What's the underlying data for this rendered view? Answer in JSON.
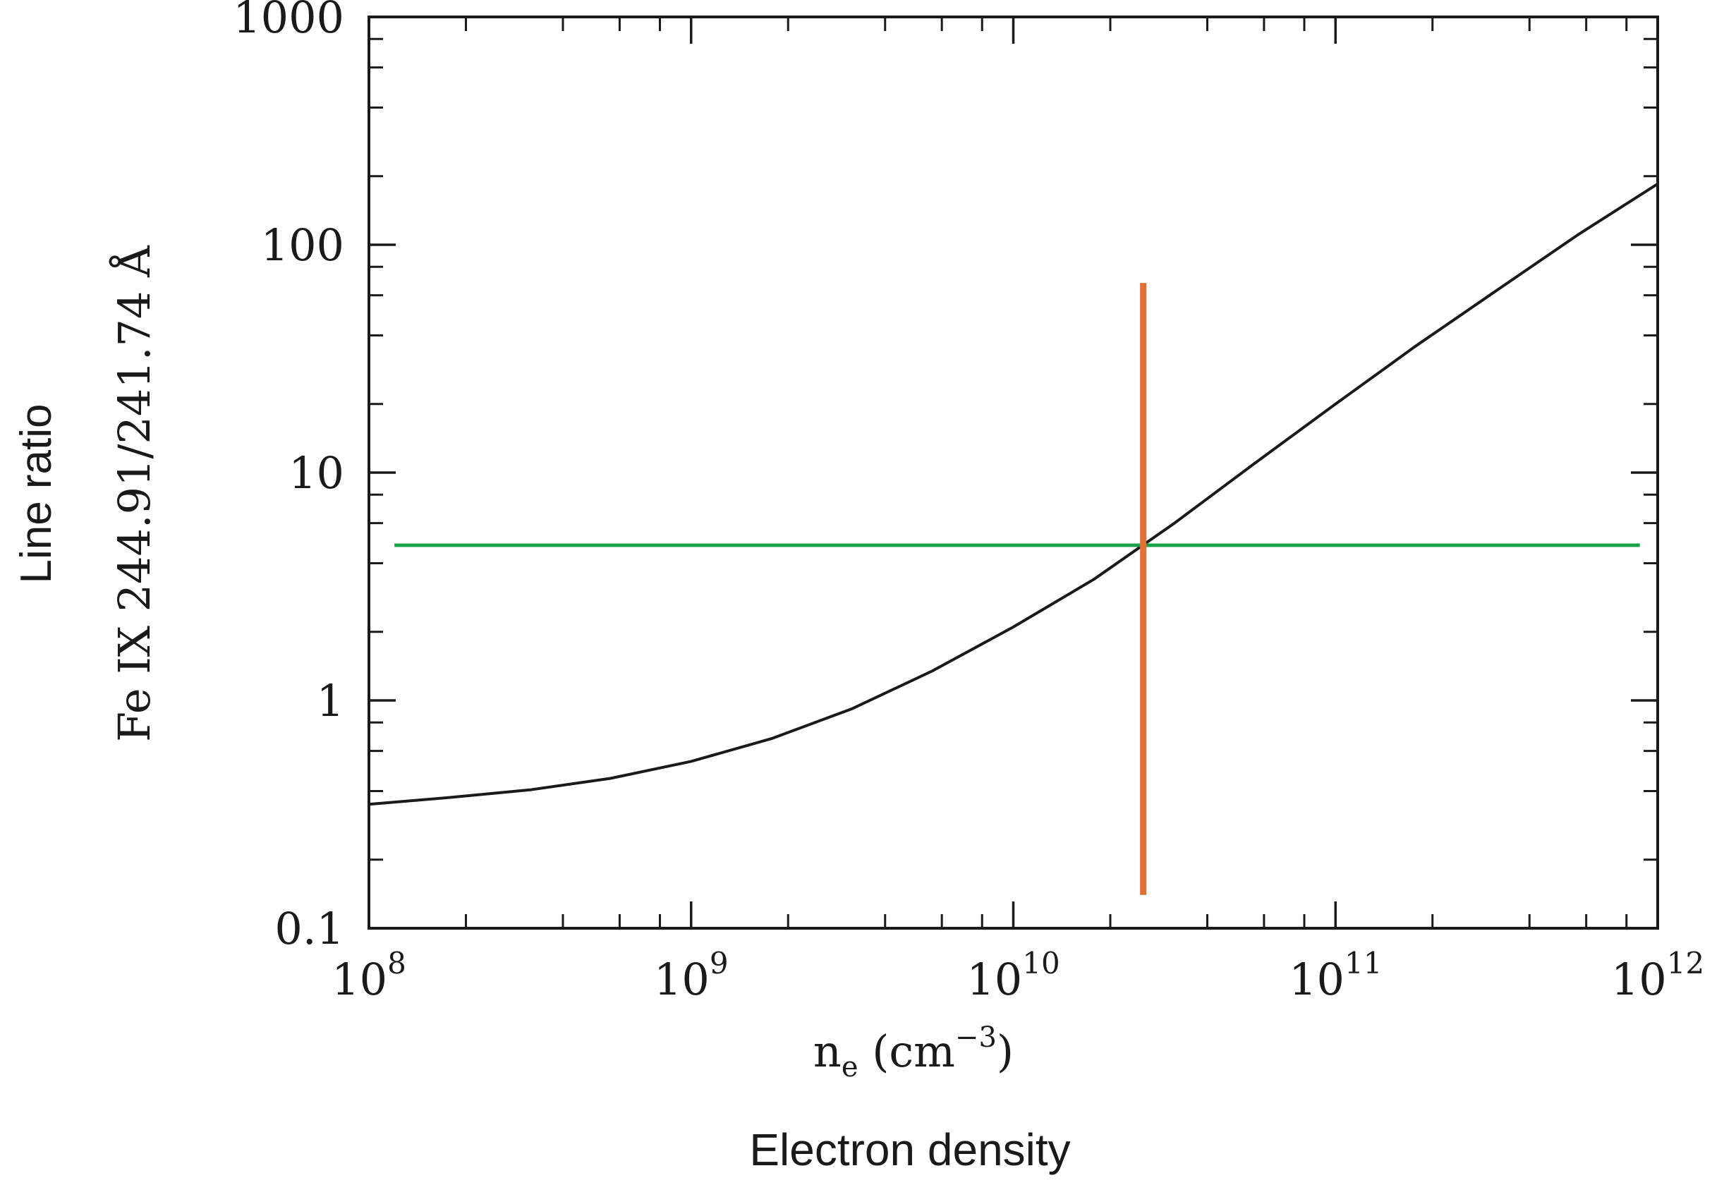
{
  "chart_data": {
    "type": "line",
    "x_scale": "log",
    "y_scale": "log",
    "xlim": [
      100000000,
      1000000000000
    ],
    "ylim": [
      0.1,
      1000
    ],
    "x_ticks": [
      {
        "value": 100000000,
        "base": "10",
        "exp": "8"
      },
      {
        "value": 1000000000,
        "base": "10",
        "exp": "9"
      },
      {
        "value": 10000000000,
        "base": "10",
        "exp": "10"
      },
      {
        "value": 100000000000,
        "base": "10",
        "exp": "11"
      },
      {
        "value": 1000000000000,
        "base": "10",
        "exp": "12"
      }
    ],
    "y_ticks": [
      {
        "value": 0.1,
        "label": "0.1"
      },
      {
        "value": 1,
        "label": "1"
      },
      {
        "value": 10,
        "label": "10"
      },
      {
        "value": 100,
        "label": "100"
      },
      {
        "value": 1000,
        "label": "1000"
      }
    ],
    "xlabel": {
      "base": "n",
      "sub": "e",
      "unit_open": " (cm",
      "sup": "−3",
      "unit_close": ")"
    },
    "xlabel2": "Electron density",
    "ylabel_line1": "Fe IX 244.91/241.74 Å",
    "ylabel_line2": "Line ratio",
    "grid": false,
    "series": [
      {
        "color": "#1a1a1a",
        "x": [
          100000000,
          177800000,
          316200000,
          562300000,
          1000000000,
          1778000000,
          3162000000,
          5623000000,
          10000000000,
          17780000000,
          31620000000,
          56230000000,
          100000000000,
          177800000000,
          316200000000,
          562300000000,
          1000000000000
        ],
        "y": [
          0.35,
          0.375,
          0.405,
          0.455,
          0.54,
          0.68,
          0.92,
          1.35,
          2.1,
          3.4,
          6.0,
          11.0,
          20.0,
          36.0,
          63.0,
          110.0,
          185.0
        ]
      }
    ],
    "hline": {
      "y": 4.8,
      "x_from": 120000000,
      "x_to": 880000000000,
      "color": "#18a04a"
    },
    "vline": {
      "x": 25300000000,
      "y_from": 0.14,
      "y_to": 68,
      "color": "#e0703a"
    }
  }
}
